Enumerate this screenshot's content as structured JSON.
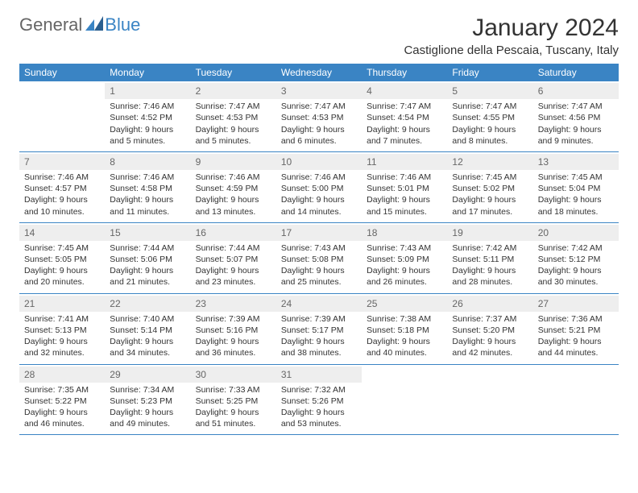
{
  "logo": {
    "part1": "General",
    "part2": "Blue"
  },
  "title": "January 2024",
  "location": "Castiglione della Pescaia, Tuscany, Italy",
  "colors": {
    "header_bg": "#3a84c4",
    "header_text": "#ffffff",
    "daynum_bg": "#eeeeee",
    "daynum_text": "#666666",
    "body_text": "#333333",
    "rule": "#3a84c4",
    "page_bg": "#ffffff"
  },
  "weekdays": [
    "Sunday",
    "Monday",
    "Tuesday",
    "Wednesday",
    "Thursday",
    "Friday",
    "Saturday"
  ],
  "labels": {
    "sunrise": "Sunrise:",
    "sunset": "Sunset:",
    "daylight": "Daylight:"
  },
  "weeks": [
    [
      {
        "empty": true
      },
      {
        "n": "1",
        "sunrise": "7:46 AM",
        "sunset": "4:52 PM",
        "daylight": "9 hours and 5 minutes."
      },
      {
        "n": "2",
        "sunrise": "7:47 AM",
        "sunset": "4:53 PM",
        "daylight": "9 hours and 5 minutes."
      },
      {
        "n": "3",
        "sunrise": "7:47 AM",
        "sunset": "4:53 PM",
        "daylight": "9 hours and 6 minutes."
      },
      {
        "n": "4",
        "sunrise": "7:47 AM",
        "sunset": "4:54 PM",
        "daylight": "9 hours and 7 minutes."
      },
      {
        "n": "5",
        "sunrise": "7:47 AM",
        "sunset": "4:55 PM",
        "daylight": "9 hours and 8 minutes."
      },
      {
        "n": "6",
        "sunrise": "7:47 AM",
        "sunset": "4:56 PM",
        "daylight": "9 hours and 9 minutes."
      }
    ],
    [
      {
        "n": "7",
        "sunrise": "7:46 AM",
        "sunset": "4:57 PM",
        "daylight": "9 hours and 10 minutes."
      },
      {
        "n": "8",
        "sunrise": "7:46 AM",
        "sunset": "4:58 PM",
        "daylight": "9 hours and 11 minutes."
      },
      {
        "n": "9",
        "sunrise": "7:46 AM",
        "sunset": "4:59 PM",
        "daylight": "9 hours and 13 minutes."
      },
      {
        "n": "10",
        "sunrise": "7:46 AM",
        "sunset": "5:00 PM",
        "daylight": "9 hours and 14 minutes."
      },
      {
        "n": "11",
        "sunrise": "7:46 AM",
        "sunset": "5:01 PM",
        "daylight": "9 hours and 15 minutes."
      },
      {
        "n": "12",
        "sunrise": "7:45 AM",
        "sunset": "5:02 PM",
        "daylight": "9 hours and 17 minutes."
      },
      {
        "n": "13",
        "sunrise": "7:45 AM",
        "sunset": "5:04 PM",
        "daylight": "9 hours and 18 minutes."
      }
    ],
    [
      {
        "n": "14",
        "sunrise": "7:45 AM",
        "sunset": "5:05 PM",
        "daylight": "9 hours and 20 minutes."
      },
      {
        "n": "15",
        "sunrise": "7:44 AM",
        "sunset": "5:06 PM",
        "daylight": "9 hours and 21 minutes."
      },
      {
        "n": "16",
        "sunrise": "7:44 AM",
        "sunset": "5:07 PM",
        "daylight": "9 hours and 23 minutes."
      },
      {
        "n": "17",
        "sunrise": "7:43 AM",
        "sunset": "5:08 PM",
        "daylight": "9 hours and 25 minutes."
      },
      {
        "n": "18",
        "sunrise": "7:43 AM",
        "sunset": "5:09 PM",
        "daylight": "9 hours and 26 minutes."
      },
      {
        "n": "19",
        "sunrise": "7:42 AM",
        "sunset": "5:11 PM",
        "daylight": "9 hours and 28 minutes."
      },
      {
        "n": "20",
        "sunrise": "7:42 AM",
        "sunset": "5:12 PM",
        "daylight": "9 hours and 30 minutes."
      }
    ],
    [
      {
        "n": "21",
        "sunrise": "7:41 AM",
        "sunset": "5:13 PM",
        "daylight": "9 hours and 32 minutes."
      },
      {
        "n": "22",
        "sunrise": "7:40 AM",
        "sunset": "5:14 PM",
        "daylight": "9 hours and 34 minutes."
      },
      {
        "n": "23",
        "sunrise": "7:39 AM",
        "sunset": "5:16 PM",
        "daylight": "9 hours and 36 minutes."
      },
      {
        "n": "24",
        "sunrise": "7:39 AM",
        "sunset": "5:17 PM",
        "daylight": "9 hours and 38 minutes."
      },
      {
        "n": "25",
        "sunrise": "7:38 AM",
        "sunset": "5:18 PM",
        "daylight": "9 hours and 40 minutes."
      },
      {
        "n": "26",
        "sunrise": "7:37 AM",
        "sunset": "5:20 PM",
        "daylight": "9 hours and 42 minutes."
      },
      {
        "n": "27",
        "sunrise": "7:36 AM",
        "sunset": "5:21 PM",
        "daylight": "9 hours and 44 minutes."
      }
    ],
    [
      {
        "n": "28",
        "sunrise": "7:35 AM",
        "sunset": "5:22 PM",
        "daylight": "9 hours and 46 minutes."
      },
      {
        "n": "29",
        "sunrise": "7:34 AM",
        "sunset": "5:23 PM",
        "daylight": "9 hours and 49 minutes."
      },
      {
        "n": "30",
        "sunrise": "7:33 AM",
        "sunset": "5:25 PM",
        "daylight": "9 hours and 51 minutes."
      },
      {
        "n": "31",
        "sunrise": "7:32 AM",
        "sunset": "5:26 PM",
        "daylight": "9 hours and 53 minutes."
      },
      {
        "empty": true
      },
      {
        "empty": true
      },
      {
        "empty": true
      }
    ]
  ]
}
